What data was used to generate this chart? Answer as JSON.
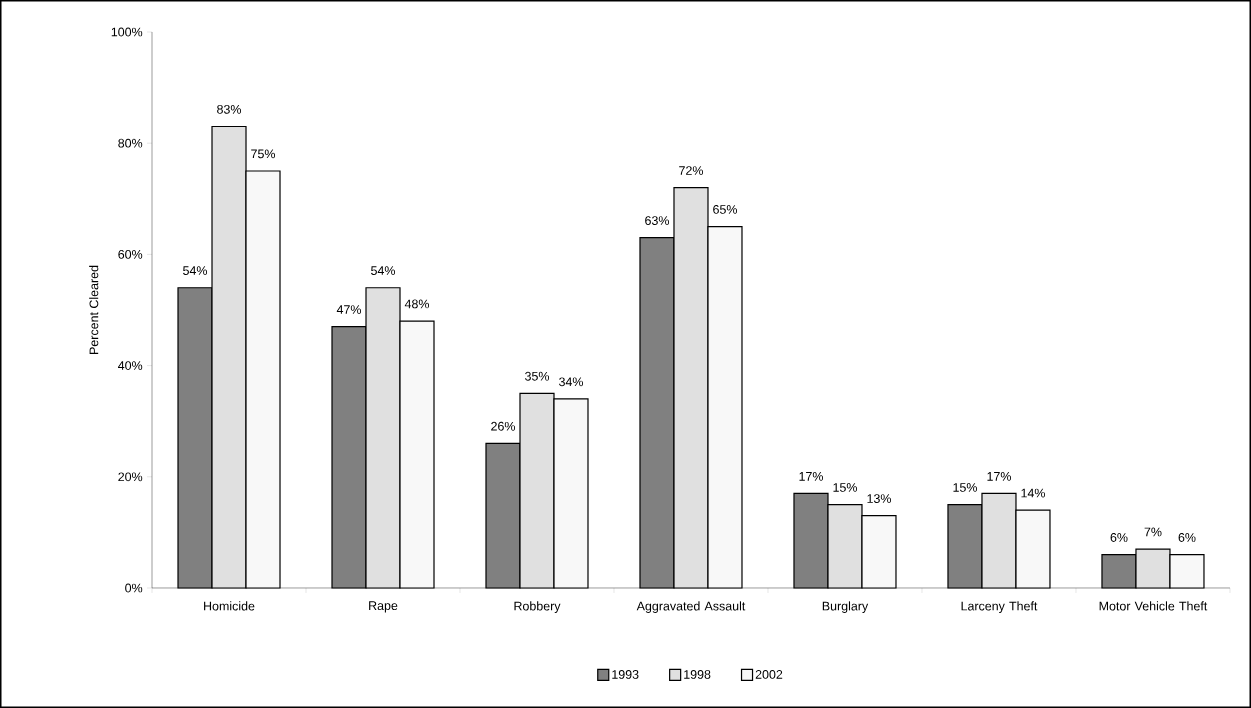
{
  "chart_data": {
    "type": "bar",
    "ylabel": "Percent Cleared",
    "categories": [
      "Homicide",
      "Rape",
      "Robbery",
      "Aggravated Assault",
      "Burglary",
      "Larceny Theft",
      "Motor Vehicle Theft"
    ],
    "series": [
      {
        "name": "1993",
        "color": "#808080",
        "values": [
          54,
          47,
          26,
          63,
          17,
          15,
          6
        ],
        "value_labels": [
          "54%",
          "47%",
          "26%",
          "63%",
          "17%",
          "15%",
          "6%"
        ]
      },
      {
        "name": "1998",
        "color": "#e0e0e0",
        "values": [
          83,
          54,
          35,
          72,
          15,
          17,
          7
        ],
        "value_labels": [
          "83%",
          "54%",
          "35%",
          "72%",
          "15%",
          "17%",
          "7%"
        ]
      },
      {
        "name": "2002",
        "color": "#f8f8f8",
        "values": [
          75,
          48,
          34,
          65,
          13,
          14,
          6
        ],
        "value_labels": [
          "75%",
          "48%",
          "34%",
          "65%",
          "13%",
          "14%",
          "6%"
        ]
      }
    ],
    "ylim": [
      0,
      100
    ],
    "yticks": [
      {
        "value": 0,
        "label": "0%"
      },
      {
        "value": 20,
        "label": "20%"
      },
      {
        "value": 40,
        "label": "40%"
      },
      {
        "value": 60,
        "label": "60%"
      },
      {
        "value": 80,
        "label": "80%"
      },
      {
        "value": 100,
        "label": "100%"
      }
    ],
    "grid": false,
    "legend": "bottom"
  }
}
